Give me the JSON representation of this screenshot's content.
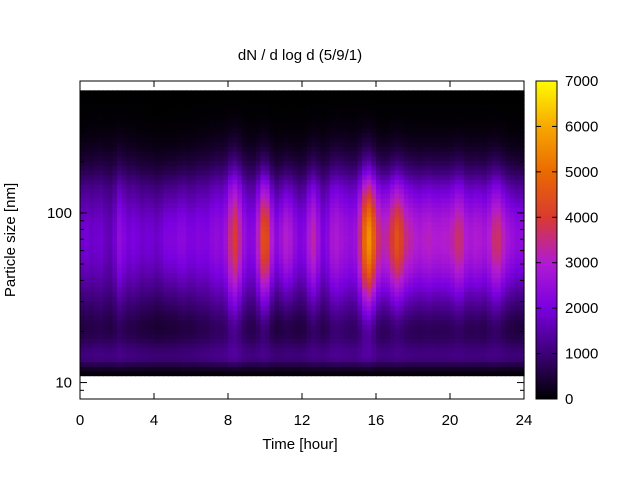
{
  "chart_data": {
    "type": "heatmap",
    "title": "dN / d log d (5/9/1)",
    "xlabel": "Time [hour]",
    "ylabel": "Particle size [nm]",
    "xlim": [
      0,
      24
    ],
    "ylim": [
      8,
      600
    ],
    "y_scale": "log",
    "x_ticks": [
      0,
      4,
      8,
      12,
      16,
      20,
      24
    ],
    "x_tick_labels": [
      "0",
      "4",
      "8",
      "12",
      "16",
      "20",
      "24"
    ],
    "y_ticks": [
      10,
      100
    ],
    "y_tick_labels": [
      "10",
      "100"
    ],
    "colorbar": {
      "min": 0,
      "max": 7000,
      "ticks": [
        0,
        1000,
        2000,
        3000,
        4000,
        5000,
        6000,
        7000
      ],
      "tick_labels": [
        "0",
        "1000",
        "2000",
        "3000",
        "4000",
        "5000",
        "6000",
        "7000"
      ],
      "palette": [
        "#000000",
        "#3c0076",
        "#7a00df",
        "#b11bd1",
        "#d93a31",
        "#ea6a00",
        "#f7a800",
        "#fffc00"
      ]
    },
    "grid": false,
    "legend": "colorbar-right",
    "size_range_nm": [
      11,
      520
    ],
    "peak_size_nm": 70,
    "events": [
      {
        "hour": 8.4,
        "peak": 5200
      },
      {
        "hour": 10.0,
        "peak": 5700
      },
      {
        "hour": 11.2,
        "peak": 4700
      },
      {
        "hour": 12.6,
        "peak": 4600
      },
      {
        "hour": 13.8,
        "peak": 4300
      },
      {
        "hour": 15.6,
        "peak": 6300
      },
      {
        "hour": 17.2,
        "peak": 4400
      },
      {
        "hour": 20.4,
        "peak": 4200
      },
      {
        "hour": 22.6,
        "peak": 4500
      }
    ]
  }
}
